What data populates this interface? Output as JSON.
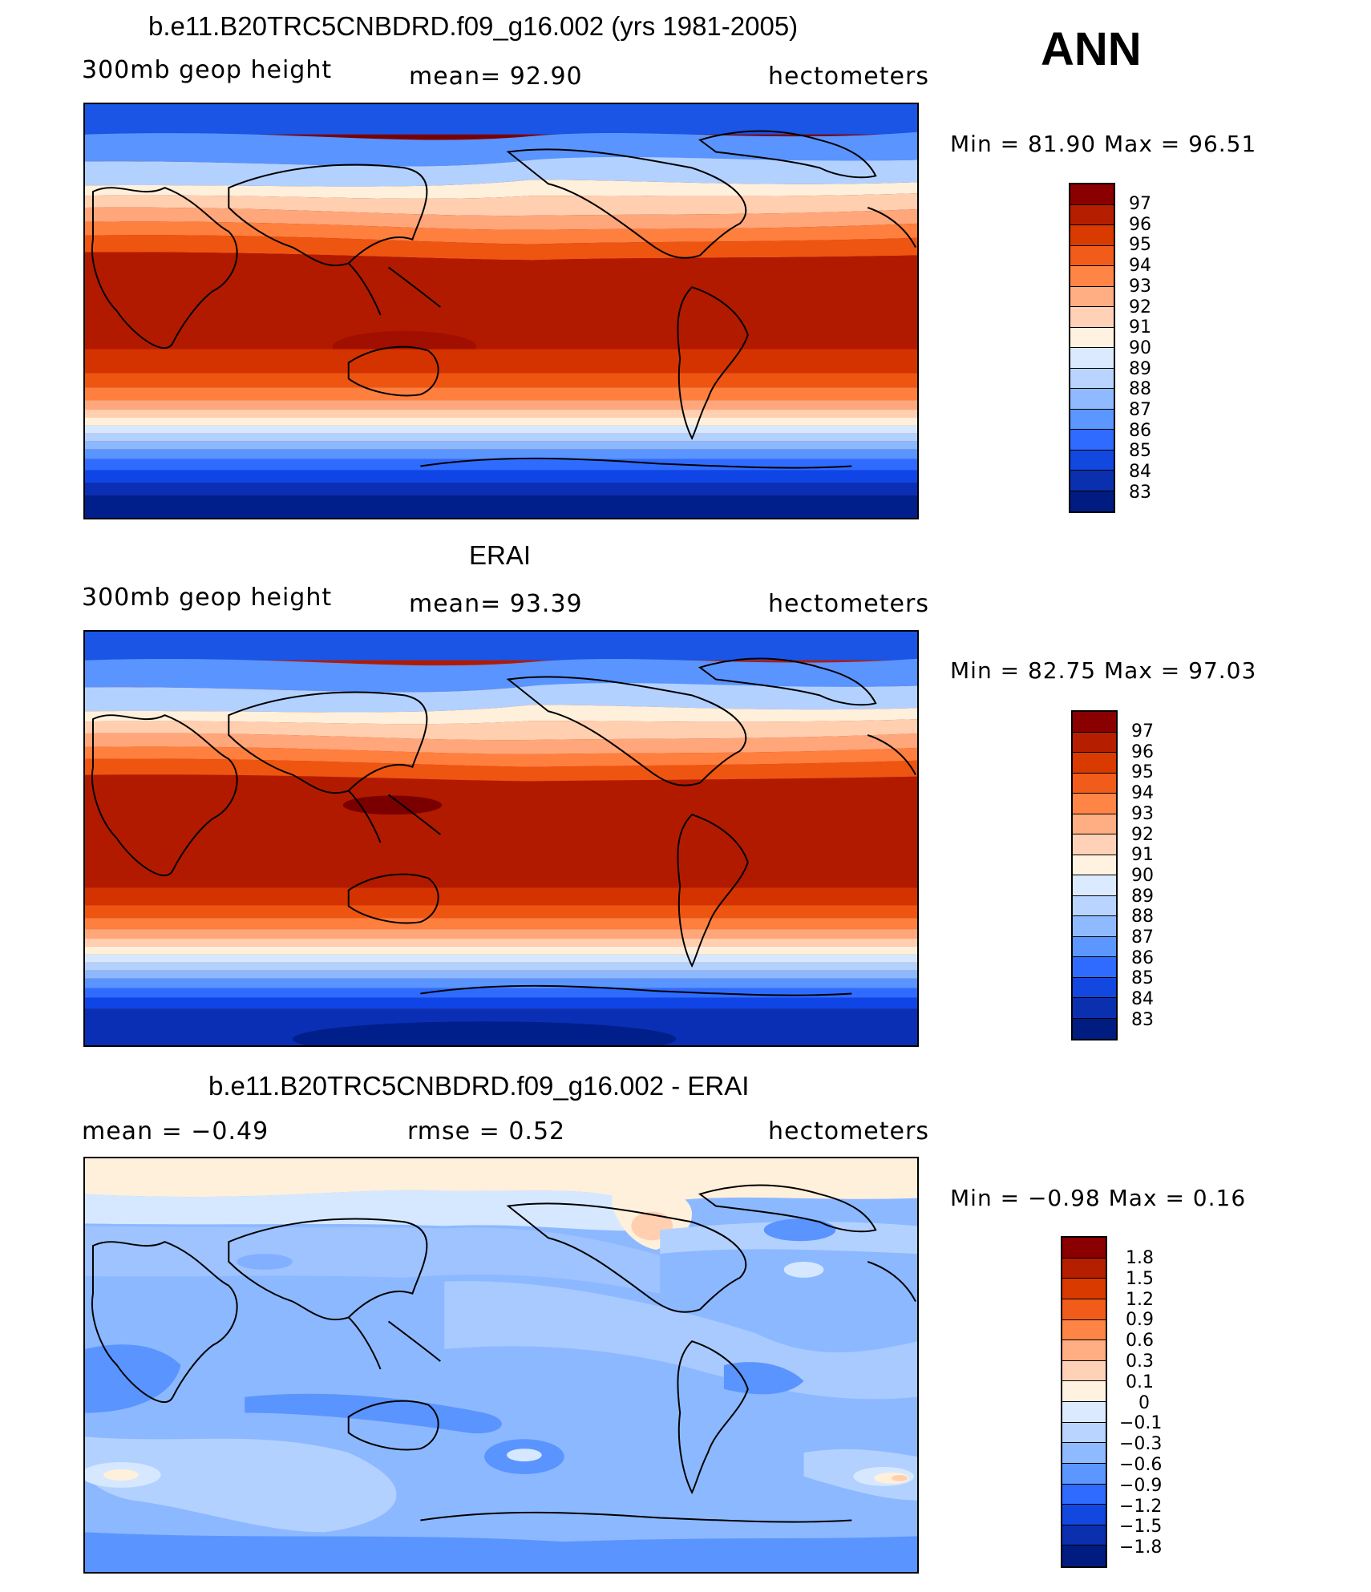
{
  "season": "ANN",
  "panels": [
    {
      "id": "model",
      "title": "b.e11.B20TRC5CNBDRD.f09_g16.002 (yrs 1981-2005)",
      "left_label": "300mb  geop  height",
      "center_label": "mean=   92.90",
      "right_label": "hectometers",
      "minmax": "Min  =    81.90  Max  =    96.51",
      "colorbar": [
        "97",
        "96",
        "95",
        "94",
        "93",
        "92",
        "91",
        "90",
        "89",
        "88",
        "87",
        "86",
        "85",
        "84",
        "83"
      ]
    },
    {
      "id": "obs",
      "title": "ERAI",
      "left_label": "300mb  geop  height",
      "center_label": "mean=   93.39",
      "right_label": "hectometers",
      "minmax": "Min  =    82.75  Max  =    97.03",
      "colorbar": [
        "97",
        "96",
        "95",
        "94",
        "93",
        "92",
        "91",
        "90",
        "89",
        "88",
        "87",
        "86",
        "85",
        "84",
        "83"
      ]
    },
    {
      "id": "diff",
      "title": "b.e11.B20TRC5CNBDRD.f09_g16.002 - ERAI",
      "left_label": "mean  =    −0.49",
      "center_label": "rmse  =     0.52",
      "right_label": "hectometers",
      "minmax": "Min  =   −0.98  Max  =     0.16",
      "colorbar": [
        "1.8",
        "1.5",
        "1.2",
        "0.9",
        "0.6",
        "0.3",
        "0.1",
        "0",
        "−0.1",
        "−0.3",
        "−0.6",
        "−0.9",
        "−1.2",
        "−1.5",
        "−1.8"
      ]
    }
  ],
  "palette": [
    "#7a0000",
    "#b21a00",
    "#d43300",
    "#ee5511",
    "#ff7f3f",
    "#ffa77a",
    "#ffcfb0",
    "#fff0dc",
    "#d6e8ff",
    "#b3d1ff",
    "#8cb8ff",
    "#5a94ff",
    "#2f6bff",
    "#0f45e6",
    "#0a2fb5",
    "#001f8a"
  ],
  "cbar_palette": [
    "#8a0000",
    "#b51f00",
    "#d83a00",
    "#f25c1a",
    "#ff8547",
    "#ffad82",
    "#ffd2b8",
    "#fff2e0",
    "#dbeaff",
    "#b8d4ff",
    "#8fbaff",
    "#5c96ff",
    "#2f6bff",
    "#1247e0",
    "#0a30b0",
    "#001c80"
  ]
}
